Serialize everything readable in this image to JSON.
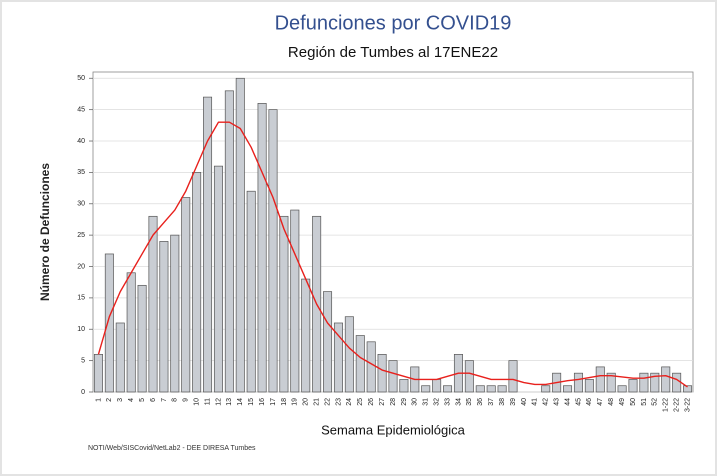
{
  "chart_data": {
    "type": "bar",
    "title": "Defunciones por COVID19",
    "subtitle": "Región de Tumbes al 17ENE22",
    "xlabel": "Semama Epidemiológica",
    "ylabel": "Número de Defunciones",
    "source": "NOTI/Web/SISCovid/NetLab2 - DEE DIRESA Tumbes",
    "categories": [
      "1",
      "2",
      "3",
      "4",
      "5",
      "6",
      "7",
      "8",
      "9",
      "10",
      "11",
      "12",
      "13",
      "14",
      "15",
      "16",
      "17",
      "18",
      "19",
      "20",
      "21",
      "22",
      "23",
      "24",
      "25",
      "26",
      "27",
      "28",
      "29",
      "30",
      "31",
      "32",
      "33",
      "34",
      "35",
      "36",
      "37",
      "38",
      "39",
      "40",
      "41",
      "42",
      "43",
      "44",
      "45",
      "46",
      "47",
      "48",
      "49",
      "50",
      "51",
      "52",
      "1-22",
      "2-22",
      "3-22"
    ],
    "series": [
      {
        "type": "bar",
        "color": "#c9cdd3",
        "values": [
          6,
          22,
          11,
          19,
          17,
          28,
          24,
          25,
          31,
          35,
          47,
          36,
          48,
          50,
          32,
          46,
          45,
          28,
          29,
          18,
          28,
          16,
          11,
          12,
          9,
          8,
          6,
          5,
          2,
          4,
          1,
          2,
          1,
          6,
          5,
          1,
          1,
          1,
          5,
          0,
          0,
          1,
          3,
          1,
          3,
          2,
          4,
          3,
          1,
          2,
          3,
          3,
          4,
          3,
          1
        ]
      },
      {
        "type": "line",
        "color": "#e8201c",
        "values": [
          6,
          12,
          16,
          19,
          22,
          25,
          27,
          29,
          32,
          36,
          40,
          43,
          43,
          42,
          39,
          35,
          31,
          26,
          22,
          18,
          14,
          11,
          9,
          7,
          5.5,
          4.5,
          3.5,
          3,
          2.5,
          2,
          2,
          2,
          2.5,
          3,
          3,
          2.5,
          2,
          2,
          2,
          1.5,
          1.2,
          1.2,
          1.5,
          1.8,
          2,
          2.3,
          2.6,
          2.6,
          2.4,
          2.2,
          2.2,
          2.5,
          2.6,
          2,
          0.8
        ]
      }
    ],
    "ylim": [
      0,
      51
    ],
    "yticks": [
      0,
      5,
      10,
      15,
      20,
      25,
      30,
      35,
      40,
      45,
      50
    ],
    "grid": true
  }
}
